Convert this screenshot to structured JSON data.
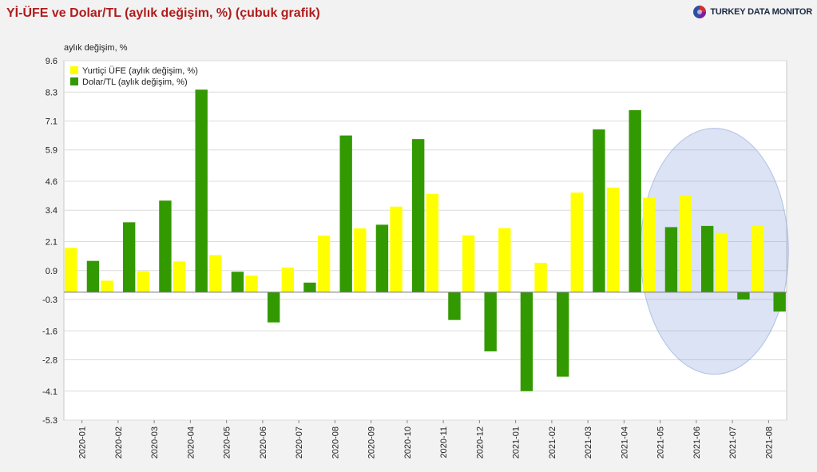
{
  "title": "Yİ-ÜFE ve Dolar/TL (aylık değişim, %) (çubuk grafik)",
  "brand": {
    "name": "TURKEY DATA MONITOR"
  },
  "chart_data": {
    "type": "bar",
    "ylabel": "aylık değişim, %",
    "ylim": [
      -5.3,
      9.6
    ],
    "yticks": [
      "9.6",
      "8.3",
      "7.1",
      "5.9",
      "4.6",
      "3.4",
      "2.1",
      "0.9",
      "-0.3",
      "-1.6",
      "-2.8",
      "-4.1",
      "-5.3"
    ],
    "ytick_values": [
      9.6,
      8.3,
      7.1,
      5.9,
      4.6,
      3.4,
      2.1,
      0.9,
      -0.3,
      -1.6,
      -2.8,
      -4.1,
      -5.3
    ],
    "categories": [
      "2020-01",
      "2020-02",
      "2020-03",
      "2020-04",
      "2020-05",
      "2020-06",
      "2020-07",
      "2020-08",
      "2020-09",
      "2020-10",
      "2020-11",
      "2020-12",
      "2021-01",
      "2021-02",
      "2021-03",
      "2021-04",
      "2021-05",
      "2021-06",
      "2021-07",
      "2021-08"
    ],
    "legend_position": "top-left",
    "grid": true,
    "highlight": {
      "shape": "ellipse",
      "categories": [
        "2021-05",
        "2021-06",
        "2021-07",
        "2021-08"
      ],
      "color": "#7f9bd6"
    },
    "series": [
      {
        "name": "Yurtiçi ÜFE (aylık değişim, %)",
        "color": "#ffff00",
        "values": [
          1.84,
          0.48,
          0.87,
          1.28,
          1.54,
          0.69,
          1.02,
          2.35,
          2.65,
          3.55,
          4.08,
          2.36,
          2.66,
          1.22,
          4.13,
          4.34,
          3.92,
          4.01,
          2.46,
          2.77
        ]
      },
      {
        "name": "Dolar/TL (aylık değişim, %)",
        "color": "#339900",
        "values": [
          1.3,
          2.9,
          3.8,
          8.4,
          0.85,
          -1.25,
          0.4,
          6.5,
          2.8,
          6.35,
          -1.15,
          -2.45,
          -4.1,
          -3.5,
          6.75,
          7.55,
          2.7,
          2.75,
          -0.3,
          -0.8
        ]
      }
    ]
  }
}
